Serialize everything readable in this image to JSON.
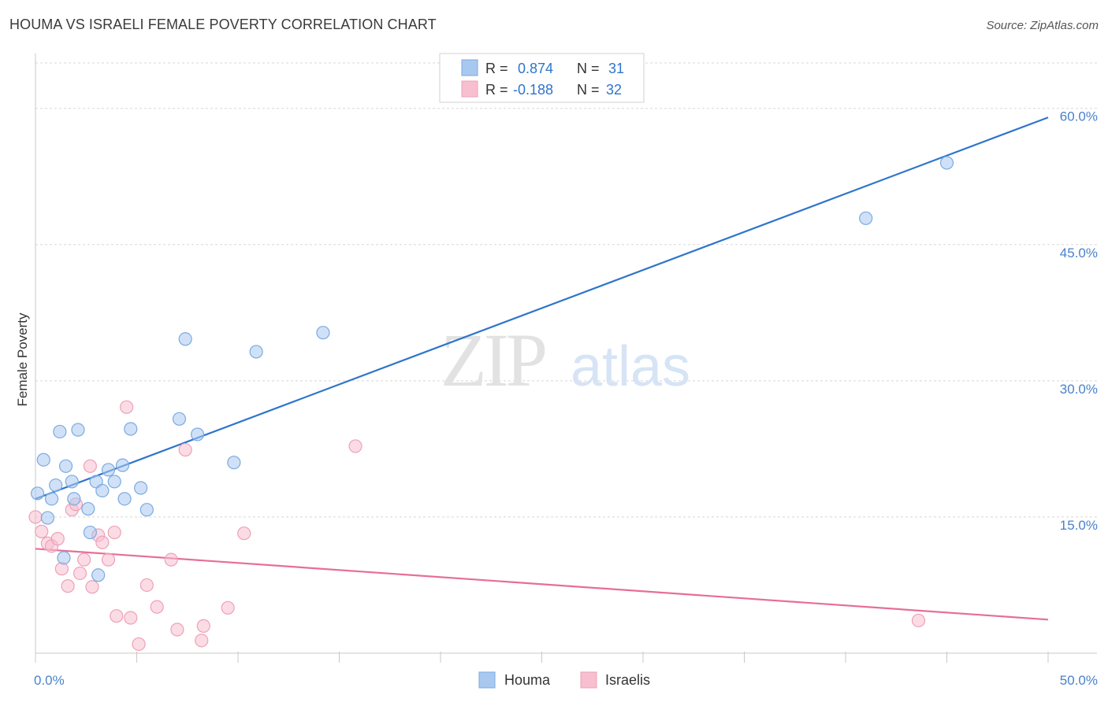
{
  "header": {
    "title": "HOUMA VS ISRAELI FEMALE POVERTY CORRELATION CHART",
    "source": "Source: ZipAtlas.com"
  },
  "watermark": {
    "zip": "ZIP",
    "atlas": "atlas"
  },
  "colors": {
    "houma_fill": "#a9c8f0",
    "houma_stroke": "#7aaae0",
    "houma_line": "#2e75cc",
    "israelis_fill": "#f7bfd0",
    "israelis_stroke": "#eea0b8",
    "israelis_line": "#e66e98",
    "tick_label": "#4a82cc",
    "grid": "#d8d8d8"
  },
  "legend_top": [
    {
      "r_label": "R =",
      "r_value": "0.874",
      "n_label": "N =",
      "n_value": "31",
      "series": "Houma"
    },
    {
      "r_label": "R =",
      "r_value": "-0.188",
      "n_label": "N =",
      "n_value": "32",
      "series": "Israelis"
    }
  ],
  "chart_data": {
    "type": "scatter",
    "title": "HOUMA VS ISRAELI FEMALE POVERTY CORRELATION CHART",
    "xlabel": "",
    "ylabel": "Female Poverty",
    "xlim": [
      0,
      50
    ],
    "ylim": [
      0,
      65
    ],
    "x_tick_labels": [
      "0.0%",
      "50.0%"
    ],
    "y_ticks": [
      15,
      30,
      45,
      60
    ],
    "y_tick_labels": [
      "15.0%",
      "30.0%",
      "45.0%",
      "60.0%"
    ],
    "x_minor_ticks": [
      0,
      5,
      10,
      15,
      20,
      25,
      30,
      35,
      40,
      45,
      50
    ],
    "grid": true,
    "legend_position": "bottom-center",
    "series": [
      {
        "name": "Houma",
        "r": 0.874,
        "n": 31,
        "trend": {
          "x": [
            0,
            50
          ],
          "y": [
            17.0,
            59.0
          ]
        },
        "points": [
          [
            0.1,
            17.6
          ],
          [
            0.4,
            21.3
          ],
          [
            0.6,
            14.9
          ],
          [
            0.8,
            17.0
          ],
          [
            1.0,
            18.5
          ],
          [
            1.2,
            24.4
          ],
          [
            1.4,
            10.5
          ],
          [
            1.5,
            20.6
          ],
          [
            1.8,
            18.9
          ],
          [
            1.9,
            17.0
          ],
          [
            2.1,
            24.6
          ],
          [
            2.6,
            15.9
          ],
          [
            2.7,
            13.3
          ],
          [
            3.0,
            18.9
          ],
          [
            3.1,
            8.6
          ],
          [
            3.3,
            17.9
          ],
          [
            3.6,
            20.2
          ],
          [
            3.9,
            18.9
          ],
          [
            4.3,
            20.7
          ],
          [
            4.4,
            17.0
          ],
          [
            4.7,
            24.7
          ],
          [
            5.2,
            18.2
          ],
          [
            5.5,
            15.8
          ],
          [
            7.1,
            25.8
          ],
          [
            7.4,
            34.6
          ],
          [
            8.0,
            24.1
          ],
          [
            9.8,
            21.0
          ],
          [
            10.9,
            33.2
          ],
          [
            14.2,
            35.3
          ],
          [
            41.0,
            47.9
          ],
          [
            45.0,
            54.0
          ]
        ]
      },
      {
        "name": "Israelis",
        "r": -0.188,
        "n": 32,
        "trend": {
          "x": [
            0,
            50
          ],
          "y": [
            11.5,
            3.7
          ]
        },
        "points": [
          [
            0.0,
            15.0
          ],
          [
            0.3,
            13.4
          ],
          [
            0.6,
            12.1
          ],
          [
            0.8,
            11.8
          ],
          [
            1.1,
            12.6
          ],
          [
            1.3,
            9.3
          ],
          [
            1.6,
            7.4
          ],
          [
            1.8,
            15.8
          ],
          [
            2.0,
            16.4
          ],
          [
            2.2,
            8.8
          ],
          [
            2.4,
            10.3
          ],
          [
            2.7,
            20.6
          ],
          [
            2.8,
            7.3
          ],
          [
            3.1,
            13.0
          ],
          [
            3.3,
            12.2
          ],
          [
            3.6,
            10.3
          ],
          [
            3.9,
            13.3
          ],
          [
            4.0,
            4.1
          ],
          [
            4.5,
            27.1
          ],
          [
            4.7,
            3.9
          ],
          [
            5.1,
            1.0
          ],
          [
            5.5,
            7.5
          ],
          [
            6.0,
            5.1
          ],
          [
            6.7,
            10.3
          ],
          [
            7.0,
            2.6
          ],
          [
            7.4,
            22.4
          ],
          [
            8.2,
            1.4
          ],
          [
            8.3,
            3.0
          ],
          [
            9.5,
            5.0
          ],
          [
            10.3,
            13.2
          ],
          [
            15.8,
            22.8
          ],
          [
            43.6,
            3.6
          ]
        ]
      }
    ]
  }
}
